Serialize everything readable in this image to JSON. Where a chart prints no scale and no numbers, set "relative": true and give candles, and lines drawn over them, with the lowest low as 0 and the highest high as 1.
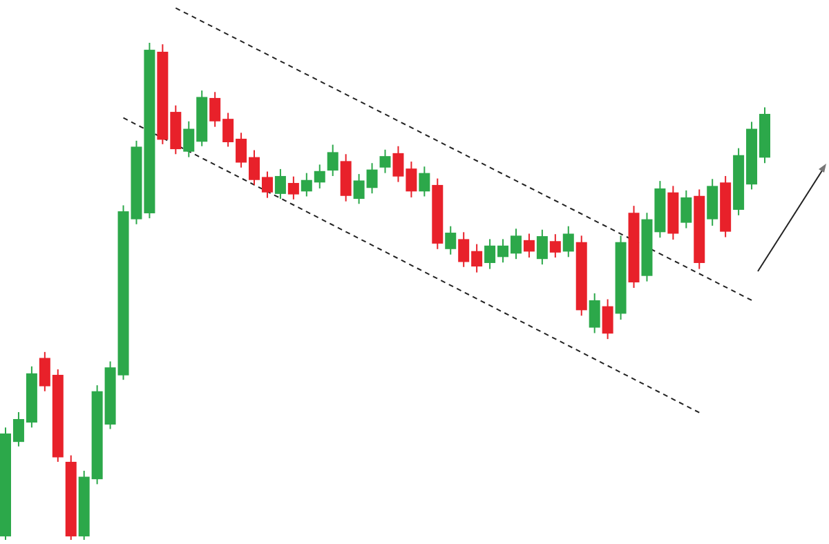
{
  "chart_data": {
    "type": "candlestick",
    "relative": true,
    "categories": [
      null,
      null,
      null,
      null,
      null,
      null,
      null,
      null,
      null,
      null,
      null,
      null,
      null,
      null,
      null,
      null,
      null,
      null,
      null,
      null,
      null,
      null,
      null,
      null,
      null,
      null,
      null,
      null,
      null,
      null,
      null,
      null,
      null,
      null,
      null,
      null,
      null,
      null,
      null,
      null,
      null,
      null,
      null,
      null,
      null,
      null,
      null,
      null,
      null,
      null,
      null,
      null,
      null,
      null,
      null,
      null,
      null,
      null,
      null
    ],
    "ohlc": [
      [
        0.007,
        0.226,
        0,
        0.214
      ],
      [
        0.197,
        0.257,
        0.188,
        0.243
      ],
      [
        0.236,
        0.349,
        0.226,
        0.335
      ],
      [
        0.366,
        0.378,
        0.299,
        0.309
      ],
      [
        0.332,
        0.343,
        0.157,
        0.166
      ],
      [
        0.157,
        0.17,
        0,
        0.007
      ],
      [
        0.007,
        0.139,
        0,
        0.127
      ],
      [
        0.122,
        0.311,
        0.112,
        0.299
      ],
      [
        0.232,
        0.359,
        0.223,
        0.347
      ],
      [
        0.331,
        0.673,
        0.322,
        0.661
      ],
      [
        0.645,
        0.803,
        0.635,
        0.791
      ],
      [
        0.657,
        1,
        0.647,
        0.986
      ],
      [
        0.982,
        0.997,
        0.796,
        0.805
      ],
      [
        0.861,
        0.874,
        0.776,
        0.786
      ],
      [
        0.781,
        0.842,
        0.77,
        0.827
      ],
      [
        0.801,
        0.904,
        0.792,
        0.891
      ],
      [
        0.889,
        0.901,
        0.831,
        0.842
      ],
      [
        0.847,
        0.859,
        0.791,
        0.8
      ],
      [
        0.807,
        0.819,
        0.749,
        0.759
      ],
      [
        0.77,
        0.784,
        0.714,
        0.724
      ],
      [
        0.73,
        0.741,
        0.688,
        0.699
      ],
      [
        0.696,
        0.746,
        0.686,
        0.732
      ],
      [
        0.718,
        0.731,
        0.685,
        0.695
      ],
      [
        0.701,
        0.738,
        0.691,
        0.724
      ],
      [
        0.719,
        0.755,
        0.707,
        0.742
      ],
      [
        0.743,
        0.795,
        0.732,
        0.78
      ],
      [
        0.762,
        0.776,
        0.681,
        0.692
      ],
      [
        0.686,
        0.736,
        0.676,
        0.723
      ],
      [
        0.708,
        0.758,
        0.697,
        0.745
      ],
      [
        0.749,
        0.785,
        0.738,
        0.772
      ],
      [
        0.778,
        0.792,
        0.72,
        0.731
      ],
      [
        0.747,
        0.761,
        0.689,
        0.701
      ],
      [
        0.701,
        0.751,
        0.691,
        0.738
      ],
      [
        0.714,
        0.727,
        0.585,
        0.596
      ],
      [
        0.585,
        0.631,
        0.574,
        0.618
      ],
      [
        0.605,
        0.619,
        0.549,
        0.559
      ],
      [
        0.581,
        0.595,
        0.538,
        0.55
      ],
      [
        0.557,
        0.605,
        0.545,
        0.592
      ],
      [
        0.569,
        0.605,
        0.558,
        0.592
      ],
      [
        0.576,
        0.626,
        0.565,
        0.612
      ],
      [
        0.603,
        0.616,
        0.568,
        0.58
      ],
      [
        0.565,
        0.624,
        0.554,
        0.611
      ],
      [
        0.601,
        0.615,
        0.568,
        0.578
      ],
      [
        0.58,
        0.631,
        0.569,
        0.616
      ],
      [
        0.599,
        0.612,
        0.451,
        0.462
      ],
      [
        0.427,
        0.496,
        0.416,
        0.482
      ],
      [
        0.47,
        0.484,
        0.404,
        0.415
      ],
      [
        0.455,
        0.612,
        0.443,
        0.599
      ],
      [
        0.658,
        0.672,
        0.507,
        0.518
      ],
      [
        0.531,
        0.658,
        0.52,
        0.645
      ],
      [
        0.619,
        0.722,
        0.608,
        0.707
      ],
      [
        0.699,
        0.712,
        0.604,
        0.616
      ],
      [
        0.638,
        0.703,
        0.627,
        0.689
      ],
      [
        0.692,
        0.705,
        0.545,
        0.557
      ],
      [
        0.645,
        0.726,
        0.632,
        0.712
      ],
      [
        0.719,
        0.732,
        0.609,
        0.62
      ],
      [
        0.664,
        0.788,
        0.653,
        0.774
      ],
      [
        0.715,
        0.841,
        0.705,
        0.827
      ],
      [
        0.769,
        0.87,
        0.758,
        0.857
      ]
    ],
    "colors": [
      "#2ca84a",
      "#2ca84a",
      "#2ca84a",
      "#e8212a",
      "#e8212a",
      "#e8212a",
      "#2ca84a",
      "#2ca84a",
      "#2ca84a",
      "#2ca84a",
      "#2ca84a",
      "#2ca84a",
      "#e8212a",
      "#e8212a",
      "#2ca84a",
      "#2ca84a",
      "#e8212a",
      "#e8212a",
      "#e8212a",
      "#e8212a",
      "#e8212a",
      "#2ca84a",
      "#e8212a",
      "#2ca84a",
      "#2ca84a",
      "#2ca84a",
      "#e8212a",
      "#2ca84a",
      "#2ca84a",
      "#2ca84a",
      "#e8212a",
      "#e8212a",
      "#2ca84a",
      "#e8212a",
      "#2ca84a",
      "#e8212a",
      "#e8212a",
      "#2ca84a",
      "#2ca84a",
      "#2ca84a",
      "#e8212a",
      "#2ca84a",
      "#e8212a",
      "#2ca84a",
      "#e8212a",
      "#2ca84a",
      "#e8212a",
      "#2ca84a",
      "#e8212a",
      "#2ca84a",
      "#2ca84a",
      "#e8212a",
      "#2ca84a",
      "#e8212a",
      "#2ca84a",
      "#e8212a",
      "#2ca84a",
      "#2ca84a",
      "#2ca84a"
    ],
    "series": [
      {
        "type": "line",
        "values": [
          null,
          null,
          null,
          null,
          null,
          null,
          null,
          null,
          null,
          null,
          null,
          null,
          null,
          1.07,
          null,
          null,
          null,
          null,
          null,
          null,
          null,
          null,
          null,
          null,
          null,
          null,
          null,
          null,
          null,
          null,
          null,
          null,
          null,
          null,
          null,
          null,
          null,
          null,
          null,
          null,
          null,
          null,
          null,
          null,
          null,
          null,
          null,
          null,
          null,
          null,
          null,
          null,
          null,
          null,
          null,
          null,
          null,
          0.482,
          null
        ],
        "color": "#222222",
        "line_style": "dashed"
      },
      {
        "type": "line",
        "values": [
          null,
          null,
          null,
          null,
          null,
          null,
          null,
          null,
          null,
          0.849,
          null,
          null,
          null,
          null,
          null,
          null,
          null,
          null,
          null,
          null,
          null,
          null,
          null,
          null,
          null,
          null,
          null,
          null,
          null,
          null,
          null,
          null,
          null,
          null,
          null,
          null,
          null,
          null,
          null,
          null,
          null,
          null,
          null,
          null,
          null,
          null,
          null,
          null,
          null,
          null,
          null,
          null,
          null,
          0.256,
          null,
          null,
          null,
          null,
          null
        ],
        "color": "#222222",
        "line_style": "dashed"
      }
    ]
  }
}
